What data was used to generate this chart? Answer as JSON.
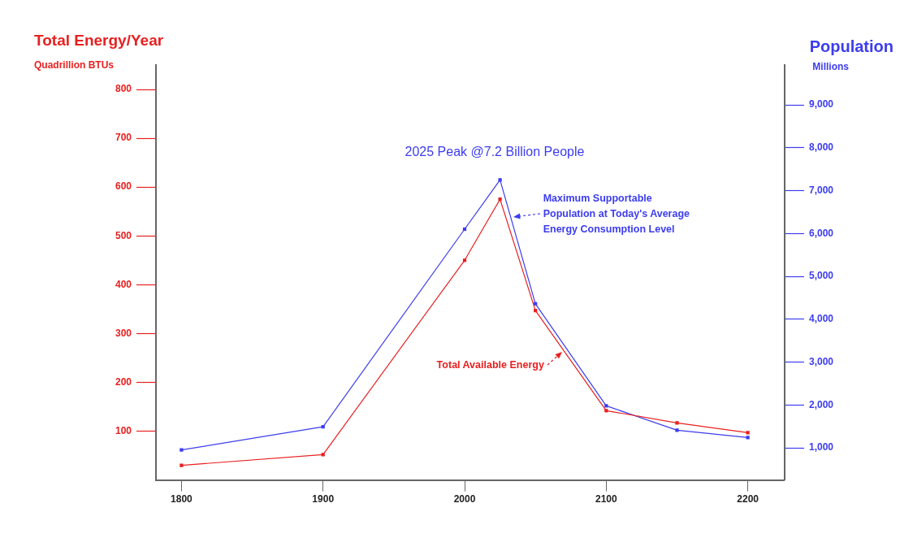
{
  "chart_data": {
    "type": "line",
    "ylabel": "Total Energy/Year",
    "y2label": "Population",
    "annotations": [
      "Quadrillion BTUs",
      "Millions",
      "2025 Peak @7.2 Billion People",
      {
        "text": "Total Available Energy",
        "x": 2069,
        "y": 263
      },
      "Maximum Supportable Population at Today's Average Energy Consumption Level"
    ],
    "x": [
      1800,
      1900,
      2000,
      2025,
      2050,
      2100,
      2150,
      2200
    ],
    "series": [
      {
        "color": "#e82020",
        "values": [
          30,
          52,
          450,
          575,
          347,
          142,
          117,
          97
        ]
      },
      {
        "color": "#3c3cf0",
        "axis": "y2",
        "values": [
          950,
          1490,
          6100,
          7250,
          4360,
          1980,
          1410,
          1240
        ]
      }
    ],
    "xlim": [
      1782,
      2226
    ],
    "xticks": [
      1800,
      1900,
      2000,
      2100,
      2200
    ],
    "ylim": [
      0,
      850
    ],
    "yticks": [
      100,
      200,
      300,
      400,
      500,
      600,
      700,
      800
    ],
    "y2lim": [
      250,
      9930
    ],
    "y2ticks": [
      {
        "value": 1000,
        "label": "1,000"
      },
      {
        "value": 2000,
        "label": "2,000"
      },
      {
        "value": 3000,
        "label": "3,000"
      },
      {
        "value": 4000,
        "label": "4,000"
      },
      {
        "value": 5000,
        "label": "5,000"
      },
      {
        "value": 6000,
        "label": "6,000"
      },
      {
        "value": 7000,
        "label": "7,000"
      },
      {
        "value": 8000,
        "label": "8,000"
      },
      {
        "value": 9000,
        "label": "9,000"
      }
    ],
    "grid": false,
    "legend": false,
    "marker": "square",
    "line_style": "solid"
  }
}
